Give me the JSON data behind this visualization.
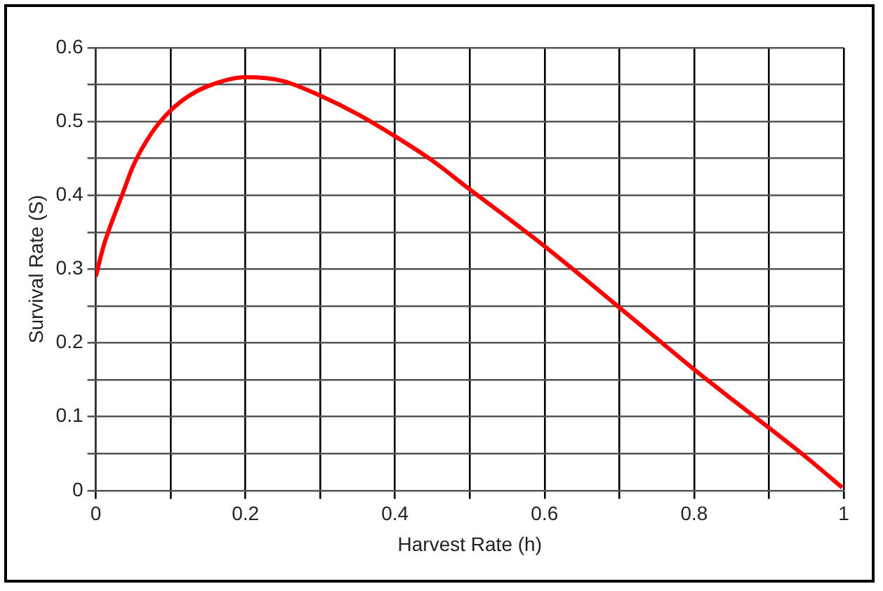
{
  "chart_data": {
    "type": "line",
    "xlabel": "Harvest Rate (h)",
    "ylabel": "Survival Rate (S)",
    "xlim": [
      0,
      1
    ],
    "ylim": [
      0,
      0.6
    ],
    "xticks": [
      0,
      {
        "value": 0.1,
        "label": null
      },
      0.2,
      {
        "value": 0.3,
        "label": null
      },
      0.4,
      {
        "value": 0.5,
        "label": null
      },
      0.6,
      {
        "value": 0.7,
        "label": null
      },
      0.8,
      {
        "value": 0.9,
        "label": null
      },
      1
    ],
    "yticks": [
      0,
      {
        "value": 0.05,
        "label": null
      },
      0.1,
      {
        "value": 0.15,
        "label": null
      },
      0.2,
      {
        "value": 0.25,
        "label": null
      },
      0.3,
      {
        "value": 0.35,
        "label": null
      },
      0.4,
      {
        "value": 0.45,
        "label": null
      },
      0.5,
      {
        "value": 0.55,
        "label": null
      },
      0.6
    ],
    "grid": true,
    "marker": "none",
    "line_style": "solid",
    "series": [
      {
        "color": "#ff0000",
        "x": [
          0,
          0.01,
          0.02,
          0.035,
          0.05,
          0.075,
          0.1,
          0.125,
          0.15,
          0.2,
          0.25,
          0.3,
          0.35,
          0.4,
          0.45,
          0.5,
          0.55,
          0.6,
          0.65,
          0.7,
          0.75,
          0.8,
          0.85,
          0.9,
          0.95,
          0.998
        ],
        "values": [
          0.29,
          0.33,
          0.36,
          0.4,
          0.44,
          0.485,
          0.515,
          0.535,
          0.548,
          0.56,
          0.555,
          0.535,
          0.51,
          0.48,
          0.447,
          0.408,
          0.37,
          0.331,
          0.29,
          0.248,
          0.206,
          0.164,
          0.124,
          0.085,
          0.045,
          0.004
        ]
      }
    ]
  }
}
